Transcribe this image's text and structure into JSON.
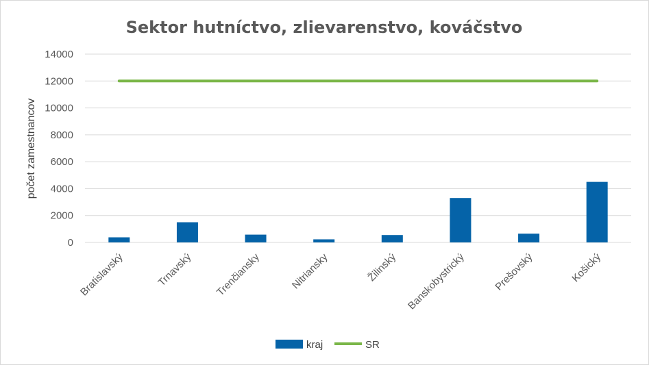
{
  "chart_data": {
    "type": "bar",
    "title": "Sektor hutníctvo, zlievarenstvo, kováčstvo",
    "xlabel": "",
    "ylabel": "počet zamestnancov",
    "categories": [
      "Bratislavský",
      "Trnavský",
      "Trenčiansky",
      "Nitriansky",
      "Žilinský",
      "Banskobystrický",
      "Prešovský",
      "Košický"
    ],
    "series": [
      {
        "name": "kraj",
        "type": "bar",
        "color": "#0563a8",
        "values": [
          380,
          1500,
          580,
          230,
          550,
          3300,
          650,
          4500
        ]
      },
      {
        "name": "SR",
        "type": "line",
        "color": "#7ab648",
        "values": [
          12000,
          12000,
          12000,
          12000,
          12000,
          12000,
          12000,
          12000
        ]
      }
    ],
    "yticks": [
      0,
      2000,
      4000,
      6000,
      8000,
      10000,
      12000,
      14000
    ],
    "ylim": [
      0,
      14000
    ],
    "grid": true,
    "legend": "bottom",
    "gridColor": "#d9d9d9"
  }
}
